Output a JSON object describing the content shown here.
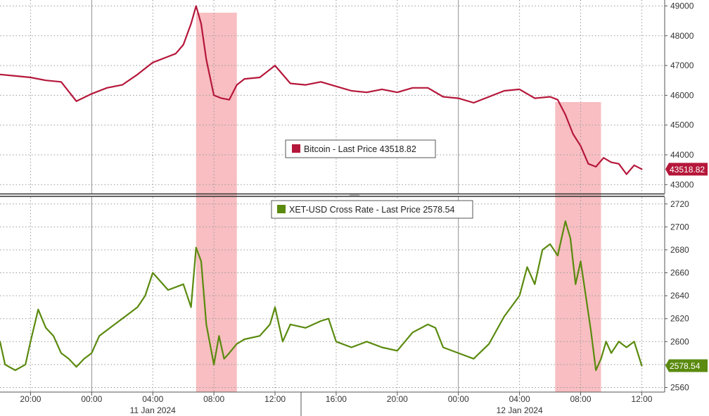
{
  "colors": {
    "bitcoin": "#b5173a",
    "xet": "#5a8a0e",
    "highlight": "#f7b7ba",
    "grid": "#9a9a9a",
    "divider": "#333333"
  },
  "chart_data": [
    {
      "type": "line",
      "series": [
        {
          "name": "Bitcoin - Last Price 43518.82",
          "x": [
            "10 Jan 2024 18:00",
            "10 Jan 2024 19:00",
            "10 Jan 2024 20:00",
            "10 Jan 2024 21:00",
            "10 Jan 2024 22:00",
            "10 Jan 2024 23:00",
            "11 Jan 2024 00:00",
            "11 Jan 2024 01:00",
            "11 Jan 2024 02:00",
            "11 Jan 2024 03:00",
            "11 Jan 2024 04:00",
            "11 Jan 2024 05:00",
            "11 Jan 2024 05:30",
            "11 Jan 2024 06:00",
            "11 Jan 2024 06:30",
            "11 Jan 2024 06:50",
            "11 Jan 2024 07:10",
            "11 Jan 2024 07:30",
            "11 Jan 2024 08:00",
            "11 Jan 2024 08:30",
            "11 Jan 2024 09:00",
            "11 Jan 2024 09:30",
            "11 Jan 2024 10:00",
            "11 Jan 2024 11:00",
            "11 Jan 2024 12:00",
            "11 Jan 2024 13:00",
            "11 Jan 2024 14:00",
            "11 Jan 2024 15:00",
            "11 Jan 2024 16:00",
            "11 Jan 2024 17:00",
            "11 Jan 2024 18:00",
            "11 Jan 2024 19:00",
            "11 Jan 2024 20:00",
            "11 Jan 2024 21:00",
            "11 Jan 2024 22:00",
            "11 Jan 2024 23:00",
            "12 Jan 2024 00:00",
            "12 Jan 2024 01:00",
            "12 Jan 2024 02:00",
            "12 Jan 2024 03:00",
            "12 Jan 2024 04:00",
            "12 Jan 2024 05:00",
            "12 Jan 2024 06:00",
            "12 Jan 2024 06:30",
            "12 Jan 2024 07:00",
            "12 Jan 2024 07:30",
            "12 Jan 2024 08:00",
            "12 Jan 2024 08:30",
            "12 Jan 2024 09:00",
            "12 Jan 2024 09:30",
            "12 Jan 2024 10:00",
            "12 Jan 2024 10:30",
            "12 Jan 2024 11:00",
            "12 Jan 2024 11:30",
            "12 Jan 2024 12:00"
          ],
          "values": [
            46700,
            46650,
            46600,
            46500,
            46450,
            45800,
            46050,
            46250,
            46350,
            46700,
            47100,
            47300,
            47400,
            47700,
            48400,
            49000,
            48400,
            47200,
            46000,
            45900,
            45850,
            46350,
            46550,
            46600,
            47000,
            46400,
            46350,
            46450,
            46300,
            46150,
            46100,
            46200,
            46100,
            46250,
            46250,
            45950,
            45900,
            45750,
            45950,
            46150,
            46200,
            45900,
            45950,
            45850,
            45350,
            44700,
            44300,
            43700,
            43600,
            43900,
            43750,
            43700,
            43350,
            43650,
            43519
          ]
        }
      ],
      "y_ticks": [
        43000,
        44000,
        45000,
        46000,
        47000,
        48000,
        49000
      ],
      "ylim": [
        42700,
        49200
      ],
      "last_value_label": "43518.82",
      "legend": "Bitcoin - Last Price 43518.82"
    },
    {
      "type": "line",
      "series": [
        {
          "name": "XET-USD Cross Rate - Last Price 2578.54",
          "x": [
            "10 Jan 2024 18:00",
            "10 Jan 2024 18:20",
            "10 Jan 2024 19:00",
            "10 Jan 2024 19:40",
            "10 Jan 2024 20:00",
            "10 Jan 2024 20:30",
            "10 Jan 2024 21:00",
            "10 Jan 2024 21:30",
            "10 Jan 2024 22:00",
            "10 Jan 2024 22:30",
            "10 Jan 2024 23:00",
            "10 Jan 2024 23:30",
            "11 Jan 2024 00:00",
            "11 Jan 2024 00:30",
            "11 Jan 2024 01:00",
            "11 Jan 2024 01:30",
            "11 Jan 2024 02:00",
            "11 Jan 2024 03:00",
            "11 Jan 2024 03:30",
            "11 Jan 2024 04:00",
            "11 Jan 2024 05:00",
            "11 Jan 2024 06:00",
            "11 Jan 2024 06:30",
            "11 Jan 2024 06:50",
            "11 Jan 2024 07:10",
            "11 Jan 2024 07:30",
            "11 Jan 2024 08:00",
            "11 Jan 2024 08:20",
            "11 Jan 2024 08:40",
            "11 Jan 2024 09:00",
            "11 Jan 2024 09:30",
            "11 Jan 2024 10:00",
            "11 Jan 2024 11:00",
            "11 Jan 2024 11:40",
            "11 Jan 2024 12:00",
            "11 Jan 2024 12:30",
            "11 Jan 2024 13:00",
            "11 Jan 2024 14:00",
            "11 Jan 2024 15:00",
            "11 Jan 2024 15:30",
            "11 Jan 2024 16:00",
            "11 Jan 2024 17:00",
            "11 Jan 2024 18:00",
            "11 Jan 2024 19:00",
            "11 Jan 2024 20:00",
            "11 Jan 2024 21:00",
            "11 Jan 2024 22:00",
            "11 Jan 2024 22:30",
            "11 Jan 2024 23:00",
            "12 Jan 2024 00:00",
            "12 Jan 2024 01:00",
            "12 Jan 2024 02:00",
            "12 Jan 2024 03:00",
            "12 Jan 2024 04:00",
            "12 Jan 2024 04:30",
            "12 Jan 2024 05:00",
            "12 Jan 2024 05:30",
            "12 Jan 2024 06:00",
            "12 Jan 2024 06:30",
            "12 Jan 2024 07:00",
            "12 Jan 2024 07:20",
            "12 Jan 2024 07:40",
            "12 Jan 2024 08:00",
            "12 Jan 2024 08:20",
            "12 Jan 2024 08:40",
            "12 Jan 2024 09:00",
            "12 Jan 2024 09:20",
            "12 Jan 2024 09:40",
            "12 Jan 2024 10:00",
            "12 Jan 2024 10:30",
            "12 Jan 2024 11:00",
            "12 Jan 2024 11:30",
            "12 Jan 2024 12:00"
          ],
          "values": [
            2600,
            2580,
            2575,
            2580,
            2600,
            2628,
            2612,
            2605,
            2590,
            2585,
            2578,
            2585,
            2590,
            2605,
            2610,
            2615,
            2620,
            2630,
            2640,
            2660,
            2645,
            2650,
            2630,
            2682,
            2670,
            2615,
            2580,
            2605,
            2585,
            2590,
            2598,
            2602,
            2605,
            2615,
            2630,
            2600,
            2615,
            2612,
            2618,
            2620,
            2600,
            2595,
            2600,
            2595,
            2592,
            2608,
            2615,
            2612,
            2595,
            2590,
            2585,
            2598,
            2622,
            2640,
            2665,
            2650,
            2680,
            2685,
            2675,
            2705,
            2690,
            2650,
            2670,
            2640,
            2610,
            2575,
            2585,
            2600,
            2590,
            2600,
            2595,
            2600,
            2579
          ]
        }
      ],
      "y_ticks": [
        2560,
        2580,
        2600,
        2620,
        2640,
        2660,
        2680,
        2700,
        2720
      ],
      "ylim": [
        2556,
        2726
      ],
      "last_value_label": "2578.54",
      "legend": "XET-USD Cross Rate - Last Price 2578.54"
    }
  ],
  "x_axis": {
    "tick_labels": [
      "20:00",
      "00:00",
      "04:00",
      "08:00",
      "12:00",
      "16:00",
      "20:00",
      "00:00",
      "04:00",
      "08:00",
      "12:00"
    ],
    "tick_times": [
      "10 Jan 2024 20:00",
      "11 Jan 2024 00:00",
      "11 Jan 2024 04:00",
      "11 Jan 2024 08:00",
      "11 Jan 2024 12:00",
      "11 Jan 2024 16:00",
      "11 Jan 2024 20:00",
      "12 Jan 2024 00:00",
      "12 Jan 2024 04:00",
      "12 Jan 2024 08:00",
      "12 Jan 2024 12:00"
    ],
    "date_labels": [
      {
        "label": "11 Jan 2024",
        "time": "11 Jan 2024 04:00"
      },
      {
        "label": "12 Jan 2024",
        "time": "12 Jan 2024 04:00"
      }
    ],
    "range": [
      "10 Jan 2024 18:00",
      "12 Jan 2024 13:30"
    ]
  },
  "highlights": [
    {
      "start": "11 Jan 2024 06:50",
      "end": "11 Jan 2024 09:30"
    },
    {
      "start": "12 Jan 2024 06:20",
      "end": "12 Jan 2024 09:20"
    }
  ]
}
